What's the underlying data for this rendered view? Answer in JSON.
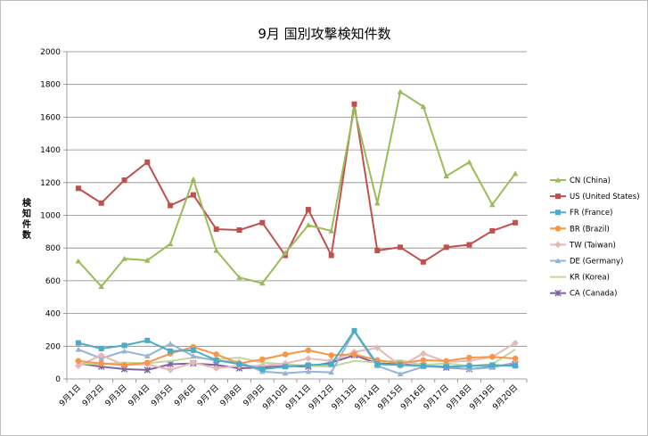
{
  "chart_data": {
    "type": "line",
    "title": "9月 国別攻撃検知件数",
    "ylabel": "検知件数",
    "xlabel": "",
    "ylim": [
      0,
      2000
    ],
    "yticks": [
      0,
      200,
      400,
      600,
      800,
      1000,
      1200,
      1400,
      1600,
      1800,
      2000
    ],
    "grid": "horizontal",
    "legend": "right",
    "categories": [
      "9月1日",
      "9月2日",
      "9月3日",
      "9月4日",
      "9月5日",
      "9月6日",
      "9月7日",
      "9月8日",
      "9月9日",
      "9月10日",
      "9月11日",
      "9月12日",
      "9月13日",
      "9月14日",
      "9月15日",
      "9月16日",
      "9月17日",
      "9月18日",
      "9月19日",
      "9月20日"
    ],
    "series": [
      {
        "name": "CN (China)",
        "color": "#9bbb59",
        "marker": "triangle",
        "values": [
          720,
          565,
          735,
          725,
          825,
          1220,
          785,
          620,
          585,
          770,
          940,
          905,
          1650,
          1075,
          1755,
          1665,
          1240,
          1325,
          1065,
          1255
        ]
      },
      {
        "name": "US (United States)",
        "color": "#c0504d",
        "marker": "square",
        "values": [
          1165,
          1075,
          1215,
          1325,
          1060,
          1125,
          915,
          910,
          955,
          755,
          1035,
          755,
          1680,
          785,
          805,
          715,
          805,
          820,
          905,
          955
        ]
      },
      {
        "name": "FR (France)",
        "color": "#4bacc6",
        "marker": "square",
        "values": [
          220,
          185,
          205,
          235,
          170,
          175,
          115,
          90,
          60,
          75,
          85,
          90,
          295,
          90,
          85,
          80,
          75,
          80,
          85,
          80
        ]
      },
      {
        "name": "BR (Brazil)",
        "color": "#f79646",
        "marker": "circle",
        "values": [
          110,
          95,
          85,
          100,
          155,
          195,
          150,
          95,
          120,
          150,
          175,
          145,
          150,
          115,
          95,
          115,
          110,
          130,
          135,
          125
        ]
      },
      {
        "name": "TW (Taiwan)",
        "color": "#e6b9b8",
        "marker": "diamond",
        "values": [
          80,
          145,
          85,
          90,
          55,
          100,
          65,
          80,
          80,
          95,
          125,
          110,
          165,
          190,
          80,
          155,
          105,
          110,
          135,
          220
        ]
      },
      {
        "name": "DE (Germany)",
        "color": "#95b3d7",
        "marker": "triangle",
        "values": [
          180,
          125,
          170,
          140,
          215,
          140,
          110,
          105,
          45,
          35,
          45,
          40,
          290,
          80,
          30,
          75,
          75,
          60,
          70,
          100
        ]
      },
      {
        "name": "KR (Korea)",
        "color": "#c3d69b",
        "marker": "none",
        "values": [
          95,
          90,
          100,
          95,
          110,
          130,
          120,
          130,
          100,
          90,
          80,
          75,
          110,
          100,
          115,
          85,
          95,
          80,
          90,
          180
        ]
      },
      {
        "name": "CA (Canada)",
        "color": "#8064a2",
        "marker": "x",
        "values": [
          95,
          75,
          60,
          55,
          90,
          95,
          85,
          65,
          70,
          80,
          75,
          100,
          145,
          95,
          90,
          80,
          70,
          60,
          75,
          90
        ]
      }
    ]
  }
}
